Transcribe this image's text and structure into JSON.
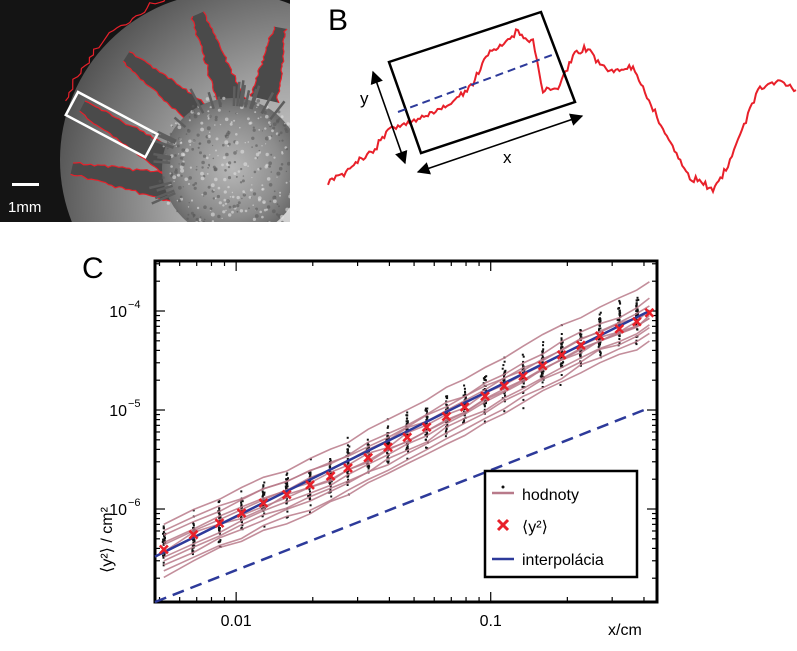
{
  "panel_a": {
    "letter": "A",
    "scale_label": "1mm"
  },
  "panel_b": {
    "letter": "B",
    "y_label": "y",
    "x_label": "x"
  },
  "panel_c": {
    "letter": "C",
    "legend": {
      "values_label": "hodnoty",
      "mean_label": "⟨y²⟩",
      "fit_label": "interpolácia"
    }
  },
  "colors": {
    "red": "#e8202a",
    "blue": "#2d3a9a",
    "mauve": "#b87a8a",
    "dots": "#111111"
  },
  "chart_data": {
    "type": "scatter",
    "title": "",
    "xlabel": "x/cm",
    "ylabel": "⟨y²⟩ / cm²",
    "x_scale": "log",
    "y_scale": "log",
    "xlim": [
      0.0048,
      0.45
    ],
    "ylim": [
      1.15e-07,
      0.00032
    ],
    "x_ticks": [
      {
        "value": 0.01,
        "label": "0.01"
      },
      {
        "value": 0.1,
        "label": "0.1"
      }
    ],
    "y_ticks": [
      {
        "value": 1e-06,
        "mantissa": "10",
        "exp": "−6"
      },
      {
        "value": 1e-05,
        "mantissa": "10",
        "exp": "−5"
      },
      {
        "value": 0.0001,
        "mantissa": "10",
        "exp": "−4"
      }
    ],
    "legend_position": "bottom-right",
    "series": [
      {
        "name": "⟨y²⟩",
        "kind": "mean-markers",
        "x": [
          0.0052,
          0.0068,
          0.0086,
          0.0105,
          0.0128,
          0.0158,
          0.0195,
          0.0235,
          0.0275,
          0.033,
          0.0395,
          0.047,
          0.056,
          0.067,
          0.079,
          0.095,
          0.113,
          0.134,
          0.16,
          0.19,
          0.226,
          0.268,
          0.32,
          0.375,
          0.42
        ],
        "y": [
          3.9e-07,
          5.5e-07,
          7.2e-07,
          9.1e-07,
          1.15e-06,
          1.4e-06,
          1.75e-06,
          2.15e-06,
          2.6e-06,
          3.3e-06,
          4.2e-06,
          5.3e-06,
          6.7e-06,
          8.6e-06,
          1.07e-05,
          1.38e-05,
          1.75e-05,
          2.2e-05,
          2.8e-05,
          3.6e-05,
          4.5e-05,
          5.6e-05,
          6.6e-05,
          7.8e-05,
          9.6e-05
        ]
      },
      {
        "name": "interpolácia",
        "kind": "fit-line",
        "x": [
          0.0048,
          0.42
        ],
        "y": [
          3.3e-07,
          0.0001
        ]
      },
      {
        "name": "",
        "kind": "reference-dashed",
        "x": [
          0.0048,
          0.42
        ],
        "y": [
          1.15e-07,
          1.05e-05
        ]
      }
    ],
    "scatter_sets": [
      {
        "x": 0.0052,
        "y_range": [
          1.7e-07,
          1.1e-06
        ]
      },
      {
        "x": 0.0068,
        "y_range": [
          2.2e-07,
          1.5e-06
        ]
      },
      {
        "x": 0.0086,
        "y_range": [
          2.8e-07,
          1.9e-06
        ]
      },
      {
        "x": 0.0105,
        "y_range": [
          3.5e-07,
          2.4e-06
        ]
      },
      {
        "x": 0.0128,
        "y_range": [
          4.6e-07,
          3e-06
        ]
      },
      {
        "x": 0.0158,
        "y_range": [
          5.8e-07,
          3.7e-06
        ]
      },
      {
        "x": 0.0195,
        "y_range": [
          7.3e-07,
          4.6e-06
        ]
      },
      {
        "x": 0.0235,
        "y_range": [
          9e-07,
          5.6e-06
        ]
      },
      {
        "x": 0.0275,
        "y_range": [
          1.1e-06,
          6.8e-06
        ]
      },
      {
        "x": 0.033,
        "y_range": [
          1.4e-06,
          8.5e-06
        ]
      },
      {
        "x": 0.0395,
        "y_range": [
          1.8e-06,
          1.1e-05
        ]
      },
      {
        "x": 0.047,
        "y_range": [
          2.2e-06,
          1.4e-05
        ]
      },
      {
        "x": 0.056,
        "y_range": [
          2.8e-06,
          1.8e-05
        ]
      },
      {
        "x": 0.067,
        "y_range": [
          3.5e-06,
          2.3e-05
        ]
      },
      {
        "x": 0.079,
        "y_range": [
          4.3e-06,
          2.9e-05
        ]
      },
      {
        "x": 0.095,
        "y_range": [
          5.4e-06,
          3.7e-05
        ]
      },
      {
        "x": 0.113,
        "y_range": [
          6.6e-06,
          4.8e-05
        ]
      },
      {
        "x": 0.134,
        "y_range": [
          8.2e-06,
          6.1e-05
        ]
      },
      {
        "x": 0.16,
        "y_range": [
          1e-05,
          7.8e-05
        ]
      },
      {
        "x": 0.19,
        "y_range": [
          1.3e-05,
          0.0001
        ]
      },
      {
        "x": 0.226,
        "y_range": [
          1.6e-05,
          0.00013
        ]
      },
      {
        "x": 0.268,
        "y_range": [
          2e-05,
          0.00017
        ]
      },
      {
        "x": 0.32,
        "y_range": [
          2.5e-05,
          0.00022
        ]
      },
      {
        "x": 0.375,
        "y_range": [
          3e-05,
          0.00026
        ]
      }
    ],
    "curve_count": 12
  }
}
